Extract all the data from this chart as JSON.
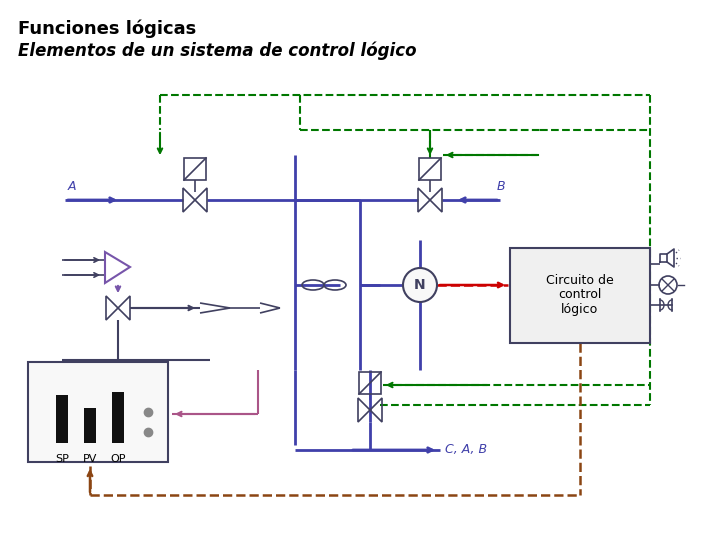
{
  "title1": "Funciones lógicas",
  "title2": "Elementos de un sistema de control lógico",
  "bg_color": "#ffffff",
  "title1_fontsize": 13,
  "title2_fontsize": 12,
  "circuito_text": "Circuito de\ncontrol\nlógico",
  "label_A": "A",
  "label_B": "B",
  "label_N": "N",
  "label_SP": "SP",
  "label_PV": "PV",
  "label_OP": "OP",
  "label_CAB": "C, A, B",
  "color_green": "#007700",
  "color_brown": "#8B4513",
  "color_red": "#cc0000",
  "color_blue": "#4040aa",
  "color_purple": "#7755aa",
  "color_pink": "#aa5588",
  "color_dark": "#404060",
  "color_box_fill": "#f0f0f0"
}
